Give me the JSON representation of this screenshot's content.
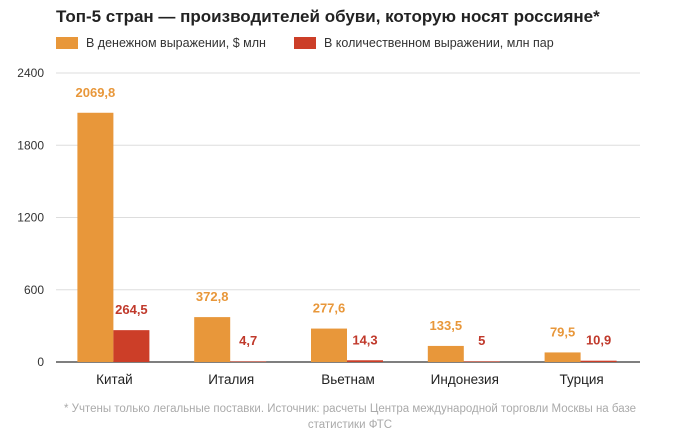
{
  "chart_data": {
    "type": "bar",
    "title": "Топ-5 стран — производителей обуви, которую носят россияне*",
    "categories": [
      "Китай",
      "Италия",
      "Вьетнам",
      "Индонезия",
      "Турция"
    ],
    "series": [
      {
        "name": "В денежном выражении, $ млн",
        "color": "#e8973a",
        "label_color": "#e8973a",
        "values": [
          2069.8,
          372.8,
          277.6,
          133.5,
          79.5
        ],
        "labels": [
          "2069,8",
          "372,8",
          "277,6",
          "133,5",
          "79,5"
        ]
      },
      {
        "name": "В количественном выражении, млн пар",
        "color": "#cc3e28",
        "label_color": "#c0392b",
        "values": [
          264.5,
          4.7,
          14.3,
          5,
          10.9
        ],
        "labels": [
          "264,5",
          "4,7",
          "14,3",
          "5",
          "10,9"
        ]
      }
    ],
    "yticks": [
      "0",
      "600",
      "1200",
      "1800",
      "2400"
    ],
    "ylim": [
      0,
      2400
    ],
    "grid": true,
    "legend": "top-left",
    "footnote": "* Учтены только легальные поставки. Источник: расчеты Центра международной торговли Москвы на базе статистики ФТС"
  }
}
